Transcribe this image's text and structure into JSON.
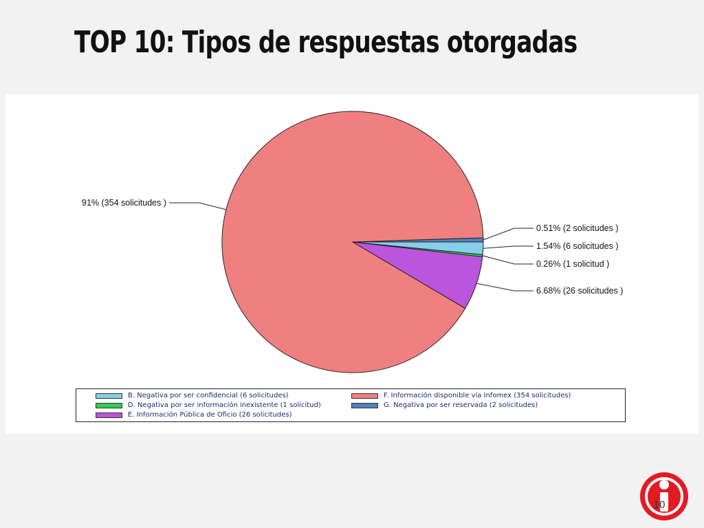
{
  "slide": {
    "title": "TOP 10:  Tipos de respuestas otorgadas",
    "page_number": "10",
    "logo_icon": "info-i-circle-icon"
  },
  "chart_data": {
    "type": "pie",
    "title": "",
    "start_angle_deg": 0,
    "direction": "counterclockwise",
    "slices": [
      {
        "category": "G. Negativa por ser reservada (2  solicitudes)",
        "value": 2,
        "label": "0.51%  (2  solicitudes )",
        "color": "#4f81bd",
        "label_side": "right"
      },
      {
        "category": "F. Información disponible vía Infomex (354  solicitudes)",
        "value": 354,
        "label": "91%  (354  solicitudes )",
        "color": "#f08080",
        "label_side": "left"
      },
      {
        "category": "E. Información Pública de Oficio (26  solicitudes)",
        "value": 26,
        "label": "6.68%  (26  solicitudes )",
        "color": "#bb55dd",
        "label_side": "right"
      },
      {
        "category": "D. Negativa por ser información inexistente (1  solicitud)",
        "value": 1,
        "label": "0.26%  (1  solicitud )",
        "color": "#33cc55",
        "label_side": "right"
      },
      {
        "category": "B. Negativa por ser confidencial (6  solicitudes)",
        "value": 6,
        "label": "1.54%  (6  solicitudes )",
        "color": "#87ceeb",
        "label_side": "right"
      }
    ],
    "legend": {
      "placement": "bottom",
      "columns": [
        [
          "B. Negativa por ser confidencial (6  solicitudes)",
          "D. Negativa por ser información inexistente (1  solicitud)",
          "E. Información Pública de Oficio (26  solicitudes)"
        ],
        [
          "F. Información disponible vía Infomex (354  solicitudes)",
          "G. Negativa por ser reservada (2  solicitudes)"
        ]
      ]
    }
  }
}
